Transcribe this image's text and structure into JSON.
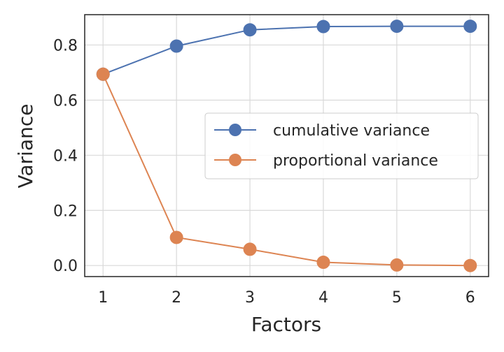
{
  "chart_data": {
    "type": "line",
    "x": [
      1,
      2,
      3,
      4,
      5,
      6
    ],
    "xlabel": "Factors",
    "ylabel": "Variance",
    "xticks": [
      "1",
      "2",
      "3",
      "4",
      "5",
      "6"
    ],
    "yticks": [
      "0.0",
      "0.2",
      "0.4",
      "0.6",
      "0.8"
    ],
    "xlim": [
      0.75,
      6.25
    ],
    "ylim": [
      -0.04,
      0.91
    ],
    "grid": true,
    "legend_position": "center-right",
    "series": [
      {
        "name": "cumulative variance",
        "color": "#4c72b0",
        "values": [
          0.694,
          0.796,
          0.855,
          0.867,
          0.868,
          0.868
        ]
      },
      {
        "name": "proportional variance",
        "color": "#dd8452",
        "values": [
          0.694,
          0.102,
          0.059,
          0.012,
          0.002,
          0.0
        ]
      }
    ]
  }
}
